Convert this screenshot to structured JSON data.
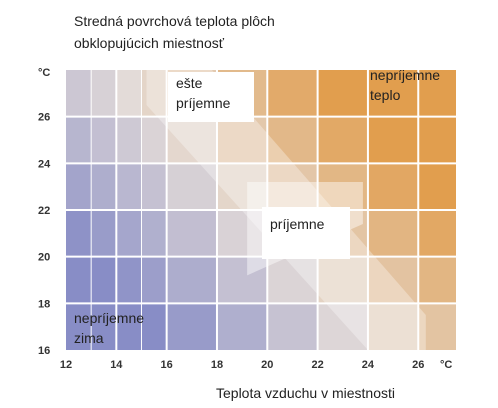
{
  "chart_data": {
    "type": "heatmap",
    "title": "Stredná povrchová teplota plôch obklopujúcich miestnosť",
    "xlabel": "Teplota vzduchu v miestnosti",
    "x_unit": "°C",
    "y_unit": "°C",
    "xlim": [
      12,
      27.5
    ],
    "ylim": [
      16,
      28
    ],
    "x_ticks": [
      "12",
      "14",
      "16",
      "18",
      "20",
      "22",
      "24",
      "26"
    ],
    "y_ticks": [
      "16",
      "18",
      "20",
      "22",
      "24",
      "26"
    ],
    "grid": true,
    "colors": {
      "cold": "#8a8fc8",
      "neutral": "#e4dcd8",
      "warm": "#e3a050",
      "comfortable": "#ffffff",
      "grid_line": "#ffffff"
    },
    "zones": [
      {
        "label_lines": [
          "nepríjemne",
          "zima"
        ],
        "type": "cold"
      },
      {
        "label_lines": [
          "ešte",
          "príjemne"
        ],
        "type": "acceptable"
      },
      {
        "label_lines": [
          "príjemne"
        ],
        "type": "comfortable"
      },
      {
        "label_lines": [
          "nepríjemne",
          "teplo"
        ],
        "type": "warm"
      }
    ]
  }
}
